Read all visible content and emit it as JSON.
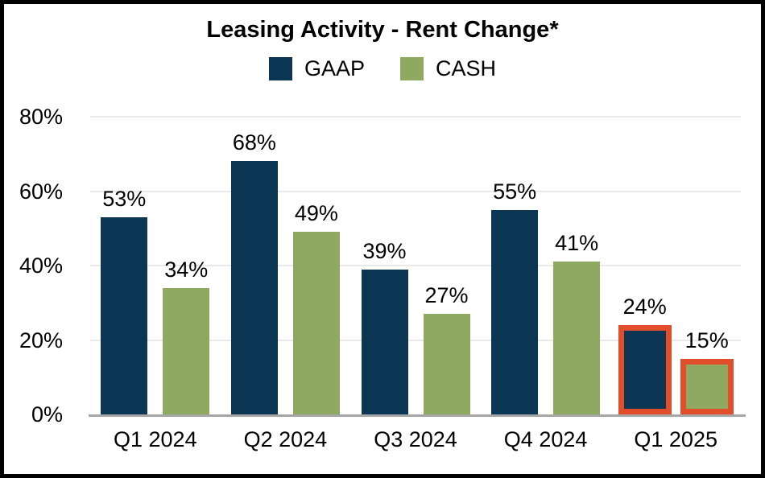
{
  "chart_data": {
    "type": "bar",
    "title": "Leasing Activity - Rent Change*",
    "categories": [
      "Q1 2024",
      "Q2 2024",
      "Q3 2024",
      "Q4 2024",
      "Q1 2025"
    ],
    "series": [
      {
        "name": "GAAP",
        "color": "#0b3654",
        "values": [
          53,
          68,
          39,
          55,
          24
        ]
      },
      {
        "name": "CASH",
        "color": "#8faa60",
        "values": [
          34,
          49,
          27,
          41,
          15
        ]
      }
    ],
    "value_labels": [
      [
        "53%",
        "68%",
        "39%",
        "55%",
        "24%"
      ],
      [
        "34%",
        "49%",
        "27%",
        "41%",
        "15%"
      ]
    ],
    "ylim": [
      0,
      80
    ],
    "yticks": [
      0,
      20,
      40,
      60,
      80
    ],
    "ytick_labels": [
      "0%",
      "20%",
      "40%",
      "60%",
      "80%"
    ],
    "grid": true,
    "legend_position": "top",
    "highlight": {
      "category": "Q1 2025",
      "outline_color": "#e14e2b"
    },
    "colors": {
      "gridline": "#e9e9e9",
      "axis_line": "#a6a6a6",
      "text": "#000000",
      "frame_border": "#000000"
    }
  }
}
